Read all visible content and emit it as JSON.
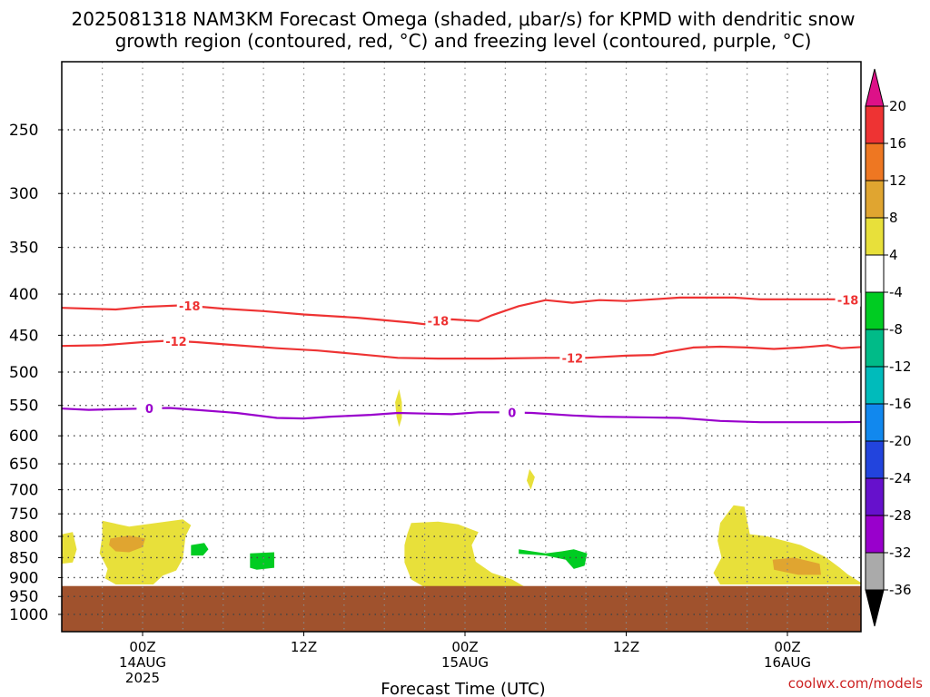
{
  "title_line1": "2025081318 NAM3KM Forecast Omega (shaded, μbar/s) for KPMD with dendritic snow",
  "title_line2": "growth region (contoured, red, °C) and freezing level (contoured, purple, °C)",
  "watermark": "coolwx.com/models",
  "chart_data": {
    "type": "time-height cross section",
    "title": "2025081318 NAM3KM Forecast Omega (shaded, μbar/s) for KPMD with dendritic snow growth region (contoured, red, °C) and freezing level (contoured, purple, °C)",
    "xlabel": "Forecast Time (UTC)",
    "ylabel": "",
    "x_range_hours": [
      18,
      72
    ],
    "x_ticks": [
      {
        "hour": 24,
        "lines": [
          "00Z",
          "14AUG",
          "2025"
        ]
      },
      {
        "hour": 36,
        "lines": [
          "12Z"
        ]
      },
      {
        "hour": 48,
        "lines": [
          "00Z",
          "15AUG"
        ]
      },
      {
        "hour": 60,
        "lines": [
          "12Z"
        ]
      },
      {
        "hour": 72,
        "lines": [
          "00Z",
          "16AUG"
        ]
      }
    ],
    "y_scale": "log pressure (hPa), inverted",
    "y_ticks": [
      250,
      300,
      350,
      400,
      450,
      500,
      550,
      600,
      650,
      700,
      750,
      800,
      850,
      900,
      950,
      1000
    ],
    "grid": true,
    "contours": [
      {
        "name": "-18",
        "color": "#ee3333",
        "label_hours": [
          27.5,
          46,
          76.5
        ],
        "points": [
          [
            18,
            416
          ],
          [
            22,
            418
          ],
          [
            24,
            415
          ],
          [
            27,
            413
          ],
          [
            30,
            417
          ],
          [
            33,
            420
          ],
          [
            36,
            424
          ],
          [
            40,
            428
          ],
          [
            44,
            434
          ],
          [
            45,
            436
          ],
          [
            46,
            432
          ],
          [
            47,
            430
          ],
          [
            49,
            432
          ],
          [
            50,
            425
          ],
          [
            52,
            414
          ],
          [
            54,
            407
          ],
          [
            56,
            410
          ],
          [
            58,
            407
          ],
          [
            60,
            408
          ],
          [
            62,
            406
          ],
          [
            64,
            404
          ],
          [
            66,
            404
          ],
          [
            68,
            404
          ],
          [
            70,
            406
          ],
          [
            72,
            406
          ],
          [
            74,
            406
          ],
          [
            76,
            406
          ],
          [
            78,
            410
          ],
          [
            80,
            414
          ]
        ]
      },
      {
        "name": "-12",
        "color": "#ee3333",
        "label_hours": [
          26.5,
          56,
          77
        ],
        "points": [
          [
            18,
            464
          ],
          [
            21,
            463
          ],
          [
            24,
            459
          ],
          [
            26,
            457
          ],
          [
            28,
            459
          ],
          [
            31,
            463
          ],
          [
            34,
            467
          ],
          [
            37,
            470
          ],
          [
            40,
            475
          ],
          [
            43,
            480
          ],
          [
            46,
            481
          ],
          [
            50,
            481
          ],
          [
            54,
            480
          ],
          [
            57,
            480
          ],
          [
            60,
            477
          ],
          [
            62,
            476
          ],
          [
            63,
            472
          ],
          [
            65,
            466
          ],
          [
            67,
            465
          ],
          [
            69,
            466
          ],
          [
            71,
            468
          ],
          [
            73,
            466
          ],
          [
            75,
            463
          ],
          [
            76,
            467
          ],
          [
            78,
            465
          ],
          [
            80,
            463
          ],
          [
            82,
            458
          ],
          [
            84,
            452
          ],
          [
            85,
            455
          ]
        ]
      },
      {
        "name": "0",
        "color": "#9900cc",
        "label_hours": [
          24.5,
          51.5
        ],
        "points": [
          [
            18,
            555
          ],
          [
            20,
            557
          ],
          [
            22,
            556
          ],
          [
            24,
            555
          ],
          [
            26,
            554
          ],
          [
            28,
            557
          ],
          [
            31,
            562
          ],
          [
            34,
            570
          ],
          [
            36,
            571
          ],
          [
            38,
            568
          ],
          [
            41,
            565
          ],
          [
            43,
            562
          ],
          [
            45,
            563
          ],
          [
            47,
            564
          ],
          [
            49,
            561
          ],
          [
            51,
            561
          ],
          [
            53,
            562
          ],
          [
            56,
            566
          ],
          [
            58,
            568
          ],
          [
            61,
            569
          ],
          [
            64,
            570
          ],
          [
            67,
            575
          ],
          [
            70,
            577
          ],
          [
            73,
            577
          ],
          [
            76,
            577
          ],
          [
            80,
            576
          ],
          [
            83,
            574
          ],
          [
            85,
            573
          ]
        ]
      }
    ],
    "terrain": {
      "color": "#a0522d",
      "top_hpa": 922,
      "note": "below ground"
    },
    "shaded_regions": [
      {
        "level": "4 to 8",
        "color": "#e8e03a",
        "points": [
          [
            18,
            795
          ],
          [
            18.8,
            790
          ],
          [
            19.1,
            830
          ],
          [
            18.8,
            862
          ],
          [
            18,
            865
          ]
        ]
      },
      {
        "level": "4 to 8",
        "color": "#e8e03a",
        "points": [
          [
            21,
            765
          ],
          [
            23,
            778
          ],
          [
            25,
            770
          ],
          [
            27,
            762
          ],
          [
            27.6,
            775
          ],
          [
            27.2,
            800
          ],
          [
            27,
            852
          ],
          [
            26.5,
            882
          ],
          [
            25.5,
            895
          ],
          [
            24.8,
            918
          ],
          [
            22,
            918
          ],
          [
            21.2,
            902
          ],
          [
            21.4,
            878
          ],
          [
            20.8,
            840
          ],
          [
            21,
            800
          ]
        ]
      },
      {
        "level": "8 to 12",
        "color": "#e0a530",
        "points": [
          [
            21.6,
            805
          ],
          [
            23,
            798
          ],
          [
            24.2,
            805
          ],
          [
            24,
            825
          ],
          [
            23,
            837
          ],
          [
            22,
            835
          ],
          [
            21.5,
            820
          ]
        ]
      },
      {
        "level": "4 to 8",
        "color": "#e8e03a",
        "points": [
          [
            44,
            770
          ],
          [
            46,
            767
          ],
          [
            47.5,
            773
          ],
          [
            49,
            790
          ],
          [
            48.5,
            820
          ],
          [
            48.8,
            860
          ],
          [
            50,
            888
          ],
          [
            51.5,
            905
          ],
          [
            52.5,
            925
          ],
          [
            45,
            925
          ],
          [
            44,
            905
          ],
          [
            43.5,
            862
          ],
          [
            43.5,
            820
          ],
          [
            43.7,
            795
          ]
        ]
      },
      {
        "level": "4 to 8",
        "color": "#e8e03a",
        "points": [
          [
            43.1,
            525
          ],
          [
            43.3,
            545
          ],
          [
            43.3,
            570
          ],
          [
            43.1,
            585
          ],
          [
            42.9,
            568
          ],
          [
            42.8,
            545
          ]
        ]
      },
      {
        "level": "4 to 8",
        "color": "#e8e03a",
        "points": [
          [
            52.8,
            660
          ],
          [
            53.2,
            675
          ],
          [
            52.9,
            700
          ],
          [
            52.6,
            682
          ]
        ]
      },
      {
        "level": "4 to 8",
        "color": "#e8e03a",
        "points": [
          [
            67,
            770
          ],
          [
            68,
            732
          ],
          [
            68.8,
            735
          ],
          [
            69.2,
            795
          ],
          [
            70.5,
            800
          ],
          [
            73,
            820
          ],
          [
            74.8,
            848
          ],
          [
            75.9,
            875
          ],
          [
            76.5,
            892
          ],
          [
            77.7,
            918
          ],
          [
            67,
            918
          ],
          [
            66.5,
            888
          ],
          [
            67.1,
            850
          ],
          [
            66.8,
            810
          ]
        ]
      },
      {
        "level": "8 to 12",
        "color": "#e0a530",
        "points": [
          [
            70.9,
            855
          ],
          [
            72.5,
            850
          ],
          [
            74.4,
            865
          ],
          [
            74.5,
            893
          ],
          [
            72.8,
            893
          ],
          [
            71,
            880
          ]
        ]
      },
      {
        "level": "-8 to -4",
        "color": "#00cc22",
        "points": [
          [
            27.6,
            820
          ],
          [
            28.6,
            815
          ],
          [
            28.9,
            830
          ],
          [
            28.5,
            845
          ],
          [
            27.6,
            845
          ]
        ]
      },
      {
        "level": "-8 to -4",
        "color": "#00cc22",
        "points": [
          [
            32,
            840
          ],
          [
            33.8,
            837
          ],
          [
            33.8,
            875
          ],
          [
            32.5,
            880
          ],
          [
            32,
            875
          ]
        ]
      },
      {
        "level": "-8 to -4",
        "color": "#00cc22",
        "points": [
          [
            52,
            830
          ],
          [
            54,
            840
          ],
          [
            55.2,
            835
          ],
          [
            56.1,
            830
          ],
          [
            57.1,
            840
          ],
          [
            56.9,
            870
          ],
          [
            56.1,
            878
          ],
          [
            55.5,
            855
          ],
          [
            54,
            845
          ],
          [
            52,
            841
          ]
        ]
      }
    ],
    "colorbar": {
      "units": "μbar/s",
      "labels": [
        20,
        16,
        12,
        8,
        4,
        -4,
        -8,
        -12,
        -16,
        -20,
        -24,
        -28,
        -32,
        -36
      ],
      "colors": [
        "#dd1188",
        "#ee3333",
        "#ee7722",
        "#e0a530",
        "#e8e03a",
        "#ffffff",
        "#00cc22",
        "#00bb88",
        "#00bbbb",
        "#1188ee",
        "#2244dd",
        "#6611cc",
        "#9900cc",
        "#aaaaaa",
        "#000000"
      ]
    }
  }
}
